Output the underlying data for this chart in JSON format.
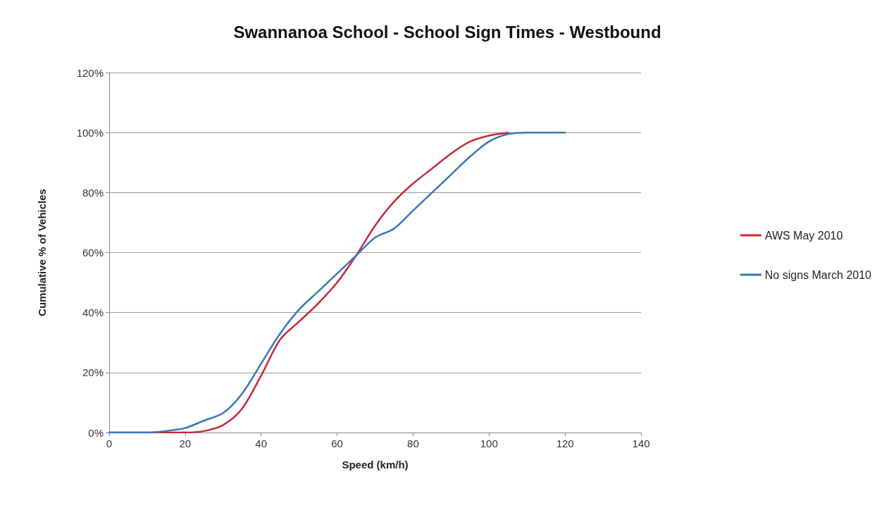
{
  "chart_data": {
    "type": "line",
    "title": "Swannanoa School - School Sign Times - Westbound",
    "xlabel": "Speed (km/h)",
    "ylabel": "Cumulative % of Vehicles",
    "xlim": [
      0,
      140
    ],
    "xticks": [
      0,
      20,
      40,
      60,
      80,
      100,
      120,
      140
    ],
    "ylim": [
      0,
      120
    ],
    "yticks": [
      {
        "value": 0,
        "label": "0%"
      },
      {
        "value": 20,
        "label": "20%"
      },
      {
        "value": 40,
        "label": "40%"
      },
      {
        "value": 60,
        "label": "60%"
      },
      {
        "value": 80,
        "label": "80%"
      },
      {
        "value": 100,
        "label": "100%"
      },
      {
        "value": 120,
        "label": "120%"
      }
    ],
    "grid": "y",
    "legend": "right",
    "marker": "none",
    "line_style": "solid",
    "series": [
      {
        "name": "AWS May 2010",
        "color": "#c8283a",
        "x": [
          0,
          10,
          20,
          25,
          30,
          35,
          40,
          45,
          50,
          55,
          60,
          65,
          70,
          75,
          80,
          85,
          90,
          95,
          100,
          105
        ],
        "values": [
          0,
          0,
          0,
          0.5,
          2.5,
          8,
          19,
          31,
          37,
          43,
          50,
          59,
          69,
          77,
          83,
          88,
          93,
          97,
          99,
          100
        ]
      },
      {
        "name": "No signs March 2010",
        "color": "#3a76b8",
        "x": [
          0,
          10,
          15,
          20,
          25,
          30,
          35,
          40,
          45,
          50,
          55,
          60,
          65,
          70,
          75,
          80,
          85,
          90,
          95,
          100,
          105,
          110,
          120
        ],
        "values": [
          0,
          0,
          0.5,
          1.5,
          4,
          6.5,
          13,
          23,
          33,
          41,
          47,
          53,
          59,
          65,
          68,
          74,
          80,
          86,
          92,
          97,
          99.5,
          100,
          100
        ]
      }
    ]
  }
}
